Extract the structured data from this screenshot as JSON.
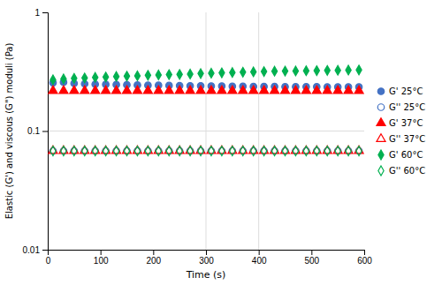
{
  "chart_data": {
    "type": "scatter",
    "xlabel": "Time (s)",
    "ylabel": "Elastic (G') and viscous (G\") moduli (Pa)",
    "log": "y",
    "xlim": [
      0,
      600
    ],
    "ylim": [
      0.01,
      1
    ],
    "xticks": [
      0,
      100,
      200,
      300,
      400,
      500,
      600
    ],
    "yticks": [
      0.01,
      0.1,
      1
    ],
    "grid": {
      "x": [
        300,
        400
      ],
      "y": [
        0.1
      ]
    },
    "legend": "right",
    "x": [
      10,
      30,
      50,
      70,
      90,
      110,
      130,
      150,
      170,
      190,
      210,
      230,
      250,
      270,
      290,
      310,
      330,
      350,
      370,
      390,
      410,
      430,
      450,
      470,
      490,
      510,
      530,
      550,
      570,
      590
    ],
    "series": [
      {
        "name": "G' 25°C",
        "color": "#4472c4",
        "marker": "circle",
        "values": [
          0.255,
          0.258,
          0.252,
          0.25,
          0.248,
          0.247,
          0.246,
          0.245,
          0.244,
          0.243,
          0.243,
          0.242,
          0.241,
          0.24,
          0.24,
          0.239,
          0.239,
          0.238,
          0.238,
          0.237,
          0.237,
          0.237,
          0.236,
          0.236,
          0.236,
          0.236,
          0.235,
          0.235,
          0.235,
          0.235
        ]
      },
      {
        "name": "G'' 25°C",
        "color": "#4472c4",
        "marker": "circle-open",
        "values": [
          0.068,
          0.068,
          0.068,
          0.068,
          0.068,
          0.068,
          0.068,
          0.068,
          0.068,
          0.068,
          0.068,
          0.068,
          0.068,
          0.068,
          0.068,
          0.068,
          0.068,
          0.068,
          0.068,
          0.068,
          0.068,
          0.068,
          0.068,
          0.068,
          0.068,
          0.068,
          0.068,
          0.068,
          0.068,
          0.068
        ]
      },
      {
        "name": "G' 37°C",
        "color": "#ff0000",
        "marker": "triangle",
        "values": [
          0.218,
          0.218,
          0.218,
          0.218,
          0.218,
          0.218,
          0.218,
          0.218,
          0.218,
          0.218,
          0.218,
          0.218,
          0.218,
          0.218,
          0.218,
          0.218,
          0.218,
          0.218,
          0.218,
          0.218,
          0.218,
          0.218,
          0.218,
          0.218,
          0.218,
          0.218,
          0.218,
          0.218,
          0.218,
          0.218
        ]
      },
      {
        "name": "G'' 37°C",
        "color": "#ff0000",
        "marker": "triangle-open",
        "values": [
          0.068,
          0.068,
          0.068,
          0.068,
          0.068,
          0.068,
          0.068,
          0.068,
          0.068,
          0.068,
          0.068,
          0.068,
          0.068,
          0.068,
          0.068,
          0.068,
          0.068,
          0.068,
          0.068,
          0.068,
          0.068,
          0.068,
          0.068,
          0.068,
          0.068,
          0.068,
          0.068,
          0.068,
          0.068,
          0.068
        ]
      },
      {
        "name": "G' 60°C",
        "color": "#00b050",
        "marker": "diamond",
        "values": [
          0.27,
          0.275,
          0.278,
          0.28,
          0.283,
          0.285,
          0.288,
          0.29,
          0.292,
          0.295,
          0.297,
          0.299,
          0.3,
          0.302,
          0.305,
          0.307,
          0.309,
          0.311,
          0.313,
          0.315,
          0.317,
          0.319,
          0.32,
          0.321,
          0.322,
          0.323,
          0.324,
          0.325,
          0.326,
          0.327
        ]
      },
      {
        "name": "G'' 60°C",
        "color": "#00b050",
        "marker": "diamond-open",
        "values": [
          0.068,
          0.068,
          0.068,
          0.068,
          0.068,
          0.068,
          0.068,
          0.068,
          0.068,
          0.068,
          0.068,
          0.068,
          0.068,
          0.068,
          0.068,
          0.068,
          0.068,
          0.068,
          0.068,
          0.068,
          0.068,
          0.068,
          0.068,
          0.068,
          0.068,
          0.068,
          0.068,
          0.068,
          0.068,
          0.068
        ]
      }
    ]
  }
}
